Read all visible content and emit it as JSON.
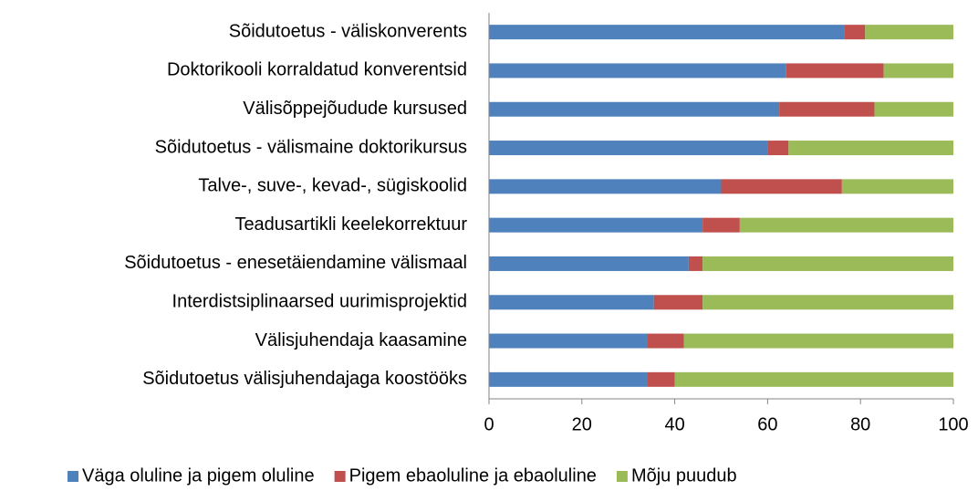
{
  "chart_data": {
    "type": "stacked_bar_horizontal",
    "categories": [
      "Sõidutoetus - väliskonverents",
      "Doktorikooli korraldatud konverentsid",
      "Välisõppejõudude kursused",
      "Sõidutoetus - välismaine doktorikursus",
      "Talve-, suve-, kevad-, sügiskoolid",
      "Teadusartikli keelekorrektuur",
      "Sõidutoetus - enesetäiendamine välismaal",
      "Interdistsiplinaarsed uurimisprojektid",
      "Välisjuhendaja kaasamine",
      "Sõidutoetus välisjuhendajaga koostööks"
    ],
    "series": [
      {
        "name": "Väga oluline ja pigem oluline",
        "color": "#4f81bd",
        "values": [
          76.5,
          64,
          62.5,
          60,
          50,
          46,
          43,
          35.5,
          34,
          34
        ]
      },
      {
        "name": "Pigem ebaoluline ja ebaoluline",
        "color": "#c0504d",
        "values": [
          4.5,
          21,
          20.5,
          4.5,
          26,
          8,
          3,
          10.5,
          8,
          6
        ]
      },
      {
        "name": "Mõju puudub",
        "color": "#9bbb59",
        "values": [
          19,
          15,
          17,
          35.5,
          24,
          46,
          54,
          54,
          58,
          60
        ]
      }
    ],
    "xlim": [
      0,
      100
    ],
    "xticks": [
      0,
      20,
      40,
      60,
      80,
      100
    ],
    "grid": false,
    "legend": "bottom"
  }
}
